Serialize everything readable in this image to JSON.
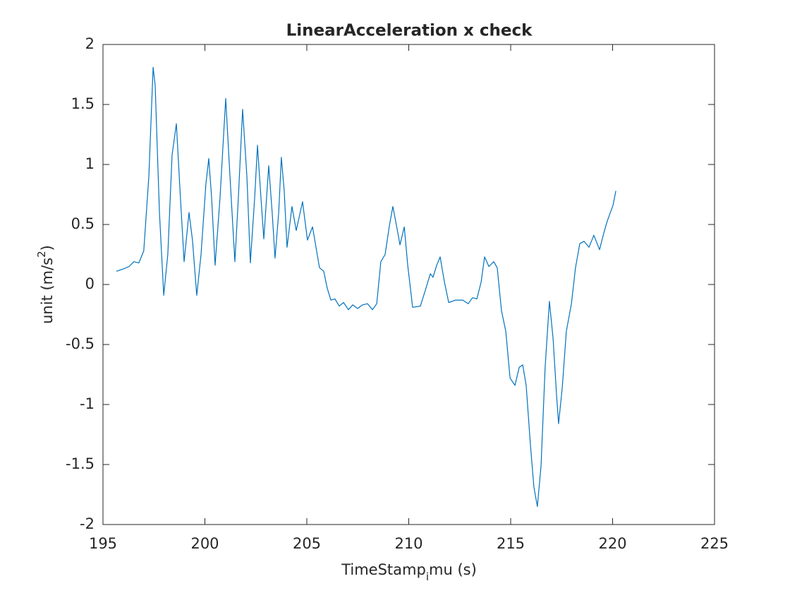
{
  "chart_data": {
    "type": "line",
    "title": "LinearAcceleration x check",
    "xlabel": [
      "TimeStamp",
      "i",
      "mu (s)"
    ],
    "ylabel": [
      "unit (m/s",
      "2",
      ")"
    ],
    "xlim": [
      195,
      225
    ],
    "xticks": [
      195,
      200,
      205,
      210,
      215,
      220,
      225
    ],
    "ylim": [
      -2,
      2
    ],
    "yticks": [
      -2,
      -1.5,
      -1,
      -0.5,
      0,
      0.5,
      1,
      1.5,
      2
    ],
    "grid": false,
    "series": [
      {
        "color": "#0072bd",
        "x": [
          195.66,
          196.0,
          196.28,
          196.52,
          196.76,
          197.0,
          197.25,
          197.46,
          197.56,
          197.77,
          197.98,
          198.18,
          198.39,
          198.6,
          198.8,
          198.98,
          199.22,
          199.39,
          199.6,
          199.81,
          200.05,
          200.19,
          200.33,
          200.5,
          200.74,
          201.02,
          201.23,
          201.47,
          201.64,
          201.85,
          202.06,
          202.23,
          202.44,
          202.58,
          202.75,
          202.89,
          203.13,
          203.3,
          203.44,
          203.62,
          203.75,
          203.89,
          204.03,
          204.27,
          204.48,
          204.79,
          205.03,
          205.28,
          205.45,
          205.62,
          205.83,
          206.0,
          206.18,
          206.38,
          206.59,
          206.8,
          207.04,
          207.25,
          207.49,
          207.73,
          207.98,
          208.22,
          208.43,
          208.63,
          208.84,
          209.05,
          209.22,
          209.4,
          209.57,
          209.78,
          209.95,
          210.19,
          210.57,
          210.81,
          211.06,
          211.19,
          211.37,
          211.54,
          211.75,
          211.96,
          212.3,
          212.65,
          212.92,
          213.13,
          213.34,
          213.55,
          213.72,
          213.93,
          214.17,
          214.34,
          214.55,
          214.76,
          214.97,
          215.21,
          215.42,
          215.59,
          215.76,
          215.97,
          216.14,
          216.31,
          216.49,
          216.69,
          216.9,
          217.08,
          217.25,
          217.35,
          217.53,
          217.73,
          217.98,
          218.18,
          218.39,
          218.6,
          218.84,
          219.08,
          219.36,
          219.57,
          219.74,
          220.02,
          220.16
        ],
        "values": [
          0.11,
          0.13,
          0.15,
          0.19,
          0.18,
          0.28,
          0.9,
          1.81,
          1.66,
          0.6,
          -0.09,
          0.25,
          1.08,
          1.34,
          0.72,
          0.19,
          0.6,
          0.37,
          -0.09,
          0.25,
          0.84,
          1.05,
          0.72,
          0.16,
          0.72,
          1.55,
          0.9,
          0.19,
          0.72,
          1.46,
          0.9,
          0.18,
          0.72,
          1.16,
          0.72,
          0.38,
          0.99,
          0.6,
          0.22,
          0.6,
          1.06,
          0.78,
          0.31,
          0.65,
          0.45,
          0.69,
          0.37,
          0.48,
          0.31,
          0.14,
          0.11,
          -0.03,
          -0.13,
          -0.12,
          -0.18,
          -0.15,
          -0.21,
          -0.17,
          -0.2,
          -0.17,
          -0.16,
          -0.21,
          -0.16,
          0.19,
          0.25,
          0.49,
          0.65,
          0.49,
          0.33,
          0.48,
          0.16,
          -0.19,
          -0.18,
          -0.05,
          0.09,
          0.06,
          0.16,
          0.23,
          0.02,
          -0.15,
          -0.13,
          -0.13,
          -0.16,
          -0.11,
          -0.12,
          0.02,
          0.23,
          0.15,
          0.19,
          0.14,
          -0.22,
          -0.39,
          -0.78,
          -0.84,
          -0.69,
          -0.67,
          -0.84,
          -1.34,
          -1.69,
          -1.85,
          -1.51,
          -0.69,
          -0.14,
          -0.45,
          -0.92,
          -1.16,
          -0.86,
          -0.39,
          -0.16,
          0.14,
          0.34,
          0.36,
          0.31,
          0.41,
          0.29,
          0.43,
          0.53,
          0.66,
          0.78
        ]
      }
    ]
  }
}
